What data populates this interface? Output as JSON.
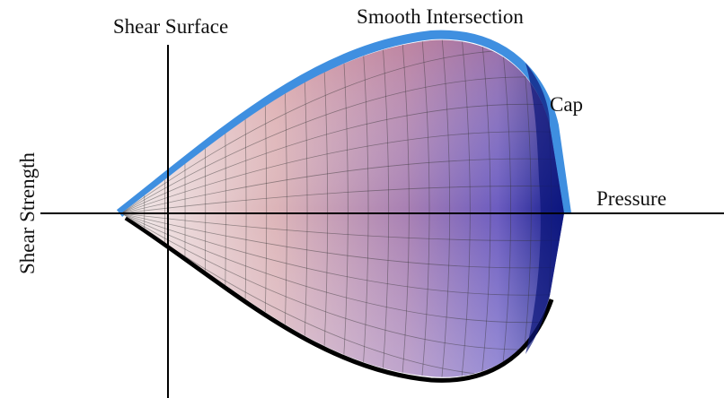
{
  "labels": {
    "shear_surface": "Shear Surface",
    "smooth_intersection": "Smooth Intersection",
    "cap": "Cap"
  },
  "axes": {
    "x_label": "Pressure",
    "y_label": "Shear Strength"
  }
}
